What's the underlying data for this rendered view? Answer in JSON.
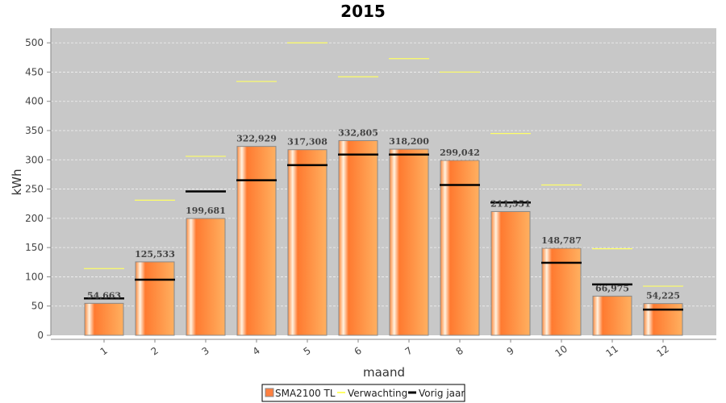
{
  "chart_data": {
    "type": "bar",
    "title": "2015",
    "xlabel": "maand",
    "ylabel": "kWh",
    "ylim": [
      0,
      525
    ],
    "yticks": [
      0,
      50,
      100,
      150,
      200,
      250,
      300,
      350,
      400,
      450,
      500
    ],
    "grid": true,
    "legend_position": "bottom",
    "categories": [
      "1",
      "2",
      "3",
      "4",
      "5",
      "6",
      "7",
      "8",
      "9",
      "10",
      "11",
      "12"
    ],
    "series": [
      {
        "name": "SMA2100 TL",
        "type": "bar",
        "color": "#ff8c40",
        "values": [
          54.663,
          125.533,
          199.681,
          322.929,
          317.308,
          332.805,
          318.2,
          299.042,
          211.551,
          148.787,
          66.975,
          54.225
        ],
        "labels": [
          "54,663",
          "125,533",
          "199,681",
          "322,929",
          "317,308",
          "332,805",
          "318,200",
          "299,042",
          "211,551",
          "148,787",
          "66,975",
          "54,225"
        ]
      },
      {
        "name": "Verwachting",
        "type": "marker",
        "color": "#ffff66",
        "values": [
          114,
          231,
          306,
          434,
          500,
          442,
          473,
          450,
          345,
          257,
          148,
          84
        ]
      },
      {
        "name": "Vorig jaar",
        "type": "marker",
        "color": "#000000",
        "values": [
          63,
          95,
          246,
          265,
          291,
          309,
          309,
          257,
          227,
          124,
          87,
          44
        ]
      }
    ]
  }
}
